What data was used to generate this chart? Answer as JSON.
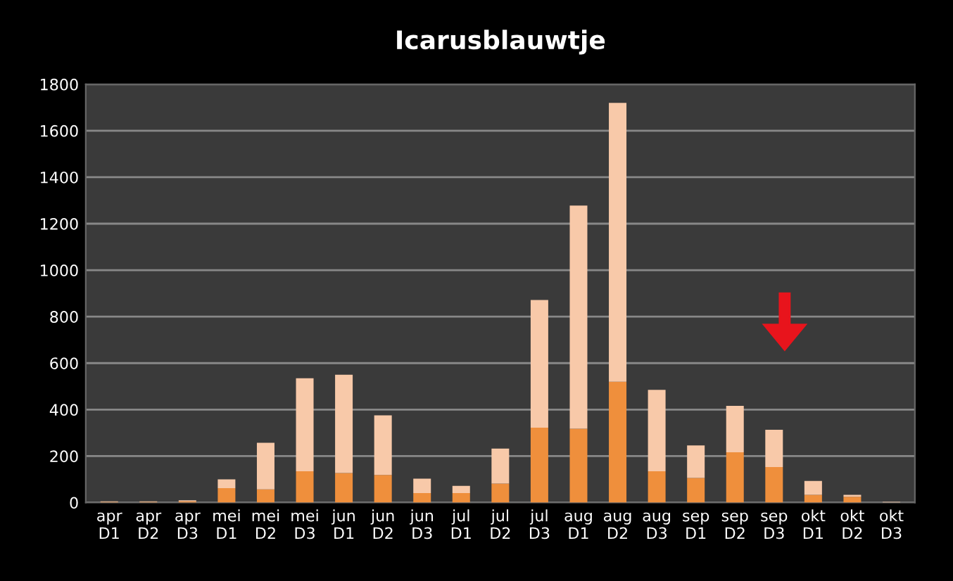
{
  "chart_data": {
    "type": "bar",
    "title": "Icarusblauwtje",
    "stacked": true,
    "categories": [
      "apr\nD1",
      "apr\nD2",
      "apr\nD3",
      "mei\nD1",
      "mei\nD2",
      "mei\nD3",
      "jun\nD1",
      "jun\nD2",
      "jun\nD3",
      "jul\nD1",
      "jul\nD2",
      "jul\nD3",
      "aug\nD1",
      "aug\nD2",
      "aug\nD3",
      "sep\nD1",
      "sep\nD2",
      "sep\nD3",
      "okt\nD1",
      "okt\nD2",
      "okt\nD3"
    ],
    "series": [
      {
        "color": "#ef8f3c",
        "values": [
          3,
          3,
          5,
          62,
          57,
          135,
          127,
          119,
          41,
          41,
          82,
          322,
          318,
          520,
          135,
          106,
          216,
          153,
          33,
          25,
          null
        ]
      },
      {
        "color": "#f8c9a9",
        "values": [
          2,
          2,
          5,
          38,
          200,
          400,
          423,
          256,
          62,
          31,
          150,
          550,
          960,
          1200,
          350,
          140,
          200,
          160,
          60,
          8,
          3
        ]
      }
    ],
    "ylim": [
      0,
      1800
    ],
    "yticks": [
      0,
      200,
      400,
      600,
      800,
      1000,
      1200,
      1400,
      1600,
      1800
    ],
    "grid": "y"
  }
}
